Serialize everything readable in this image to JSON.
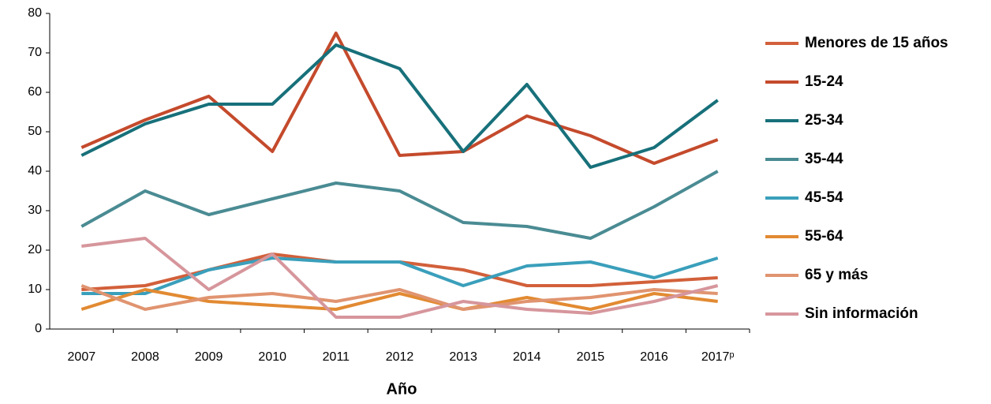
{
  "chart_data": {
    "type": "line",
    "x_label": "Año",
    "categories": [
      "2007",
      "2008",
      "2009",
      "2010",
      "2011",
      "2012",
      "2013",
      "2014",
      "2015",
      "2016",
      "2017ᵖ"
    ],
    "series": [
      {
        "name": "Menores de 15 años",
        "color": "#d2603a",
        "values": [
          10,
          11,
          15,
          19,
          17,
          17,
          15,
          11,
          11,
          12,
          13
        ]
      },
      {
        "name": "15-24",
        "color": "#c44a2c",
        "values": [
          46,
          53,
          59,
          45,
          75,
          44,
          45,
          54,
          49,
          42,
          48
        ]
      },
      {
        "name": "25-34",
        "color": "#17707a",
        "values": [
          44,
          52,
          57,
          57,
          72,
          66,
          45,
          62,
          41,
          46,
          58
        ]
      },
      {
        "name": "35-44",
        "color": "#4a8b93",
        "values": [
          26,
          35,
          29,
          33,
          37,
          35,
          27,
          26,
          23,
          31,
          40
        ]
      },
      {
        "name": "45-54",
        "color": "#3a9fbb",
        "values": [
          9,
          9,
          15,
          18,
          17,
          17,
          11,
          16,
          17,
          13,
          18
        ]
      },
      {
        "name": "55-64",
        "color": "#e28a32",
        "values": [
          5,
          10,
          7,
          6,
          5,
          9,
          5,
          8,
          5,
          9,
          7
        ]
      },
      {
        "name": "65 y más",
        "color": "#e09470",
        "values": [
          11,
          5,
          8,
          9,
          7,
          10,
          5,
          7,
          8,
          10,
          9
        ]
      },
      {
        "name": "Sin información",
        "color": "#d6969c",
        "values": [
          21,
          23,
          10,
          19,
          3,
          3,
          7,
          5,
          4,
          7,
          11
        ]
      }
    ],
    "ylim": [
      0,
      80
    ],
    "yticks": [
      0,
      10,
      20,
      30,
      40,
      50,
      60,
      70,
      80
    ],
    "grid": false,
    "legend": "right"
  }
}
